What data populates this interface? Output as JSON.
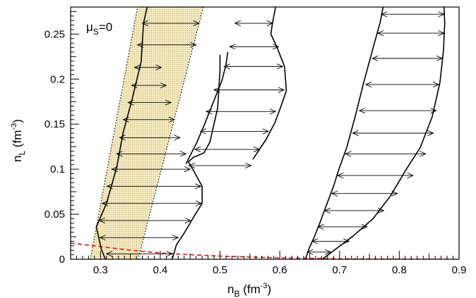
{
  "chart_data": {
    "type": "line",
    "title": "",
    "xlabel": {
      "base": "n",
      "sub": "B",
      "unit": " (fm",
      "exp": "-3",
      "close": ")"
    },
    "ylabel": {
      "base": "n",
      "sub": "L",
      "unit": " (fm",
      "exp": "-3",
      "close": ")"
    },
    "annotation": {
      "base": "μ",
      "sub": "S",
      "rest": "=0"
    },
    "xlim": [
      0.25,
      0.9
    ],
    "ylim": [
      0,
      0.28
    ],
    "xticks": [
      {
        "v": 0.3,
        "label": "0.3"
      },
      {
        "v": 0.4,
        "label": "0.4"
      },
      {
        "v": 0.5,
        "label": "0.5"
      },
      {
        "v": 0.6,
        "label": "0.6"
      },
      {
        "v": 0.7,
        "label": "0.7"
      },
      {
        "v": 0.8,
        "label": "0.8"
      },
      {
        "v": 0.9,
        "label": "0.9"
      }
    ],
    "yticks": [
      {
        "v": 0,
        "label": "0"
      },
      {
        "v": 0.05,
        "label": "0.05"
      },
      {
        "v": 0.1,
        "label": "0.1"
      },
      {
        "v": 0.15,
        "label": "0.15"
      },
      {
        "v": 0.2,
        "label": "0.2"
      },
      {
        "v": 0.25,
        "label": "0.25"
      }
    ],
    "band": {
      "color": "#f3e9c0",
      "left": [
        [
          0.283,
          0
        ],
        [
          0.362,
          0.28
        ]
      ],
      "right": [
        [
          0.363,
          0
        ],
        [
          0.472,
          0.28
        ]
      ]
    },
    "dashed_curve": {
      "color": "#e8141e",
      "points": [
        [
          0.25,
          0.018
        ],
        [
          0.3,
          0.014
        ],
        [
          0.35,
          0.01
        ],
        [
          0.4,
          0.007
        ],
        [
          0.45,
          0.005
        ],
        [
          0.5,
          0.0035
        ],
        [
          0.55,
          0.0025
        ],
        [
          0.6,
          0.0015
        ],
        [
          0.65,
          0.001
        ],
        [
          0.7,
          0.0005
        ],
        [
          0.75,
          0.0003
        ],
        [
          0.8,
          0.0002
        ],
        [
          0.85,
          0.0001
        ],
        [
          0.9,
          0
        ]
      ]
    },
    "boundaries": [
      {
        "name": "",
        "points": [
          [
            0.308,
            0
          ],
          [
            0.301,
            0.012
          ],
          [
            0.293,
            0.036
          ],
          [
            0.31,
            0.062
          ],
          [
            0.327,
            0.102
          ],
          [
            0.338,
            0.141
          ],
          [
            0.353,
            0.178
          ],
          [
            0.368,
            0.219
          ],
          [
            0.372,
            0.262
          ],
          [
            0.378,
            0.28
          ]
        ]
      },
      {
        "name": "",
        "points": [
          [
            0.42,
            0
          ],
          [
            0.427,
            0.016
          ],
          [
            0.44,
            0.029
          ],
          [
            0.456,
            0.047
          ],
          [
            0.47,
            0.062
          ],
          [
            0.47,
            0.081
          ],
          [
            0.456,
            0.098
          ],
          [
            0.447,
            0.108
          ],
          [
            0.455,
            0.113
          ],
          [
            0.473,
            0.118
          ],
          [
            0.483,
            0.13
          ],
          [
            0.496,
            0.168
          ],
          [
            0.5,
            0.21
          ],
          [
            0.5,
            0.227
          ]
        ]
      },
      {
        "name": "",
        "points": [
          [
            0.443,
            0.106
          ],
          [
            0.46,
            0.128
          ],
          [
            0.473,
            0.148
          ],
          [
            0.485,
            0.168
          ],
          [
            0.503,
            0.198
          ],
          [
            0.51,
            0.216
          ],
          [
            0.513,
            0.23
          ]
        ]
      },
      {
        "name": "",
        "points": [
          [
            0.555,
            0.111
          ],
          [
            0.577,
            0.133
          ],
          [
            0.592,
            0.152
          ],
          [
            0.601,
            0.168
          ],
          [
            0.611,
            0.187
          ],
          [
            0.608,
            0.214
          ],
          [
            0.595,
            0.236
          ],
          [
            0.585,
            0.25
          ],
          [
            0.588,
            0.263
          ],
          [
            0.593,
            0.28
          ]
        ]
      },
      {
        "name": "",
        "points": [
          [
            0.643,
            0
          ],
          [
            0.649,
            0.012
          ],
          [
            0.658,
            0.025
          ],
          [
            0.668,
            0.042
          ],
          [
            0.678,
            0.06
          ],
          [
            0.69,
            0.081
          ],
          [
            0.699,
            0.1
          ],
          [
            0.712,
            0.124
          ],
          [
            0.726,
            0.158
          ],
          [
            0.74,
            0.195
          ],
          [
            0.755,
            0.232
          ],
          [
            0.768,
            0.263
          ],
          [
            0.773,
            0.28
          ]
        ]
      },
      {
        "name": "",
        "points": [
          [
            0.671,
            0
          ],
          [
            0.689,
            0.009
          ],
          [
            0.723,
            0.026
          ],
          [
            0.756,
            0.045
          ],
          [
            0.786,
            0.071
          ],
          [
            0.81,
            0.098
          ],
          [
            0.835,
            0.124
          ],
          [
            0.855,
            0.158
          ],
          [
            0.868,
            0.196
          ],
          [
            0.874,
            0.232
          ],
          [
            0.876,
            0.262
          ],
          [
            0.875,
            0.28
          ]
        ]
      }
    ],
    "arrows": [
      [
        0.31,
        0.006,
        0.42,
        0.006
      ],
      [
        0.299,
        0.024,
        0.43,
        0.024
      ],
      [
        0.298,
        0.043,
        0.451,
        0.043
      ],
      [
        0.303,
        0.062,
        0.469,
        0.062
      ],
      [
        0.311,
        0.081,
        0.468,
        0.081
      ],
      [
        0.319,
        0.1,
        0.45,
        0.1
      ],
      [
        0.327,
        0.117,
        0.443,
        0.117
      ],
      [
        0.332,
        0.135,
        0.433,
        0.135
      ],
      [
        0.338,
        0.155,
        0.424,
        0.155
      ],
      [
        0.346,
        0.174,
        0.418,
        0.174
      ],
      [
        0.352,
        0.193,
        0.41,
        0.193
      ],
      [
        0.357,
        0.213,
        0.402,
        0.213
      ],
      [
        0.362,
        0.238,
        0.46,
        0.238
      ],
      [
        0.37,
        0.262,
        0.465,
        0.262
      ],
      [
        0.448,
        0.104,
        0.552,
        0.104
      ],
      [
        0.458,
        0.122,
        0.566,
        0.122
      ],
      [
        0.467,
        0.142,
        0.581,
        0.142
      ],
      [
        0.477,
        0.164,
        0.593,
        0.164
      ],
      [
        0.49,
        0.188,
        0.607,
        0.188
      ],
      [
        0.507,
        0.214,
        0.605,
        0.214
      ],
      [
        0.516,
        0.236,
        0.598,
        0.236
      ],
      [
        0.525,
        0.262,
        0.588,
        0.262
      ],
      [
        0.646,
        0.008,
        0.685,
        0.008
      ],
      [
        0.654,
        0.02,
        0.716,
        0.02
      ],
      [
        0.664,
        0.036,
        0.746,
        0.036
      ],
      [
        0.675,
        0.054,
        0.774,
        0.054
      ],
      [
        0.687,
        0.073,
        0.797,
        0.073
      ],
      [
        0.697,
        0.093,
        0.823,
        0.093
      ],
      [
        0.71,
        0.117,
        0.844,
        0.117
      ],
      [
        0.722,
        0.14,
        0.857,
        0.14
      ],
      [
        0.733,
        0.165,
        0.862,
        0.165
      ],
      [
        0.744,
        0.194,
        0.866,
        0.194
      ],
      [
        0.755,
        0.223,
        0.872,
        0.223
      ],
      [
        0.764,
        0.251,
        0.875,
        0.251
      ],
      [
        0.77,
        0.272,
        0.875,
        0.272
      ]
    ]
  }
}
